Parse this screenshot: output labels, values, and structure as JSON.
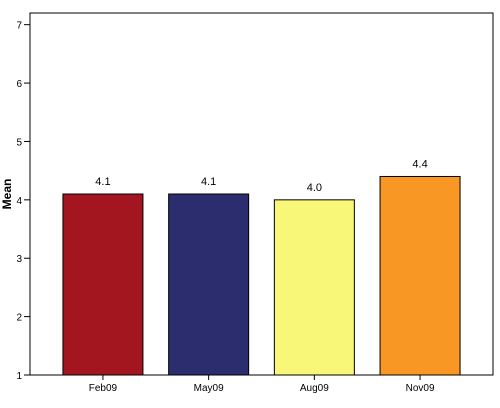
{
  "chart_data": {
    "type": "bar",
    "categories": [
      "Feb09",
      "May09",
      "Aug09",
      "Nov09"
    ],
    "values": [
      4.1,
      4.1,
      4.0,
      4.4
    ],
    "data_labels": [
      "4.1",
      "4.1",
      "4.0",
      "4.4"
    ],
    "bar_colors": [
      "#A3161F",
      "#2B2D6E",
      "#F8F778",
      "#F89724"
    ],
    "xlabel": "",
    "ylabel": "Mean",
    "ylim": [
      1,
      7.2
    ],
    "yticks": [
      1,
      2,
      3,
      4,
      5,
      6,
      7
    ],
    "grid": false,
    "legend": "none"
  }
}
